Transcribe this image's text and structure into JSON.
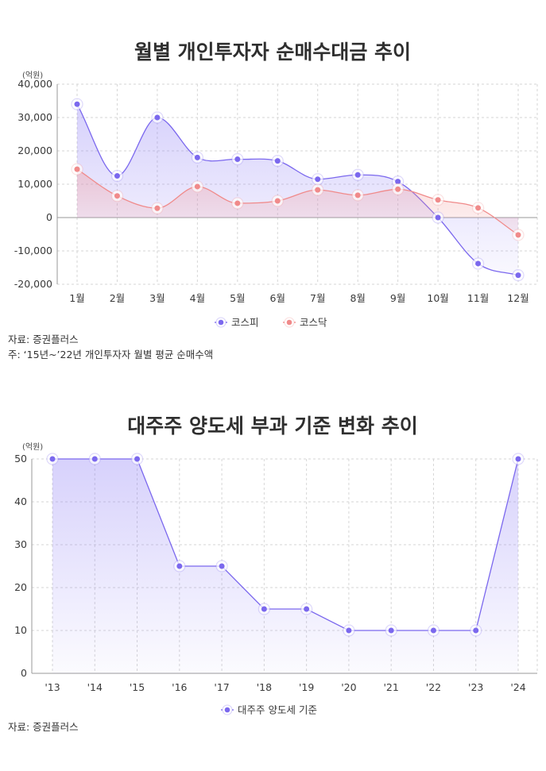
{
  "chart_data": [
    {
      "type": "area",
      "title": "월별 개인투자자 순매수대금 추이",
      "unit": "(억원)",
      "categories": [
        "1월",
        "2월",
        "3월",
        "4월",
        "5월",
        "6월",
        "7월",
        "8월",
        "9월",
        "10월",
        "11월",
        "12월"
      ],
      "ylim": [
        -20000,
        40000
      ],
      "yticks": [
        "40,000",
        "30,000",
        "20,000",
        "10,000",
        "0",
        "-10,000",
        "-20,000"
      ],
      "ytick_values": [
        40000,
        30000,
        20000,
        10000,
        0,
        -10000,
        -20000
      ],
      "grid": true,
      "legend_position": "bottom",
      "series": [
        {
          "name": "코스피",
          "color": "#7b68ee",
          "values": [
            34000,
            12500,
            30000,
            18000,
            17500,
            17000,
            11500,
            12800,
            10800,
            0,
            -13800,
            -17300
          ]
        },
        {
          "name": "코스닥",
          "color": "#f08a8a",
          "values": [
            14500,
            6500,
            2800,
            9300,
            4300,
            5000,
            8300,
            6700,
            8500,
            5300,
            2900,
            -5200
          ]
        }
      ],
      "notes": [
        "자료: 증권플러스",
        "주: ‘15년~’22년 개인투자자 월별 평균 순매수액"
      ]
    },
    {
      "type": "area",
      "title": "대주주 양도세 부과 기준 변화 추이",
      "unit": "(억원)",
      "categories": [
        "'13",
        "'14",
        "'15",
        "'16",
        "'17",
        "'18",
        "'19",
        "'20",
        "'21",
        "'22",
        "'23",
        "'24"
      ],
      "ylim": [
        0,
        50
      ],
      "yticks": [
        "50",
        "40",
        "30",
        "20",
        "10",
        "0"
      ],
      "ytick_values": [
        50,
        40,
        30,
        20,
        10,
        0
      ],
      "grid": true,
      "legend_position": "bottom",
      "series": [
        {
          "name": "대주주 양도세 기준",
          "color": "#7b68ee",
          "values": [
            50,
            50,
            50,
            25,
            25,
            15,
            15,
            10,
            10,
            10,
            10,
            50
          ]
        }
      ],
      "notes": [
        "자료: 증권플러스"
      ]
    }
  ]
}
